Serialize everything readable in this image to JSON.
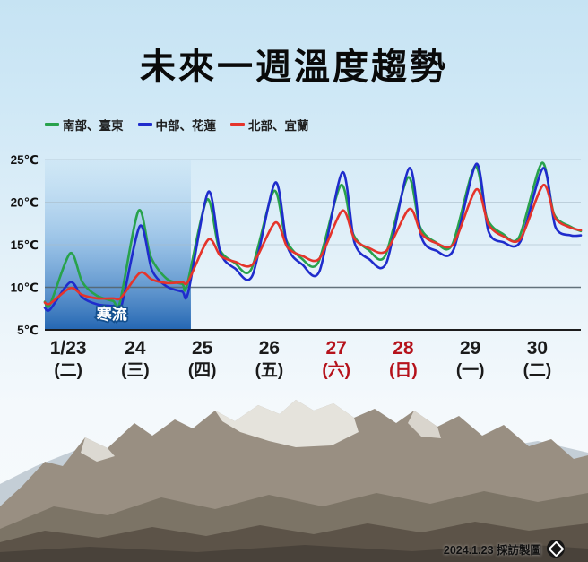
{
  "credit": {
    "text": "2024.1.23 採訪製圖"
  },
  "chart_data": {
    "type": "line",
    "title": "未來一週溫度趨勢",
    "xlabel": "",
    "ylabel": "",
    "ylim": [
      5,
      25
    ],
    "xlim": [
      0,
      8
    ],
    "grid": "horizontal",
    "legend_position": "top-left",
    "yticks": [
      {
        "v": 25,
        "label": "25℃"
      },
      {
        "v": 20,
        "label": "20℃"
      },
      {
        "v": 15,
        "label": "15℃"
      },
      {
        "v": 10,
        "label": "10℃"
      },
      {
        "v": 5,
        "label": "5℃"
      }
    ],
    "days": [
      {
        "date": "1/23",
        "dow": "(二)",
        "color": "#1a1a1a"
      },
      {
        "date": "24",
        "dow": "(三)",
        "color": "#1a1a1a"
      },
      {
        "date": "25",
        "dow": "(四)",
        "color": "#1a1a1a"
      },
      {
        "date": "26",
        "dow": "(五)",
        "color": "#1a1a1a"
      },
      {
        "date": "27",
        "dow": "(六)",
        "color": "#b5121b"
      },
      {
        "date": "28",
        "dow": "(日)",
        "color": "#b5121b"
      },
      {
        "date": "29",
        "dow": "(一)",
        "color": "#1a1a1a"
      },
      {
        "date": "30",
        "dow": "(二)",
        "color": "#1a1a1a"
      }
    ],
    "cold_wave": {
      "label": "寒流",
      "x_start": 0,
      "x_end": 2.18,
      "color": "#1a5fae"
    },
    "series": [
      {
        "name": "南部、臺東",
        "color": "#28a24c",
        "points": [
          [
            0,
            8.3
          ],
          [
            0.08,
            8.0
          ],
          [
            0.38,
            14.0
          ],
          [
            0.56,
            10.6
          ],
          [
            0.78,
            9.0
          ],
          [
            1.02,
            8.4
          ],
          [
            1.12,
            8.2
          ],
          [
            1.4,
            19.0
          ],
          [
            1.58,
            13.6
          ],
          [
            1.82,
            11.0
          ],
          [
            2.05,
            10.4
          ],
          [
            2.12,
            10.2
          ],
          [
            2.42,
            20.3
          ],
          [
            2.6,
            14.6
          ],
          [
            2.83,
            12.9
          ],
          [
            3.08,
            12.1
          ],
          [
            3.42,
            21.3
          ],
          [
            3.6,
            15.6
          ],
          [
            3.83,
            13.4
          ],
          [
            4.08,
            12.9
          ],
          [
            4.42,
            22.0
          ],
          [
            4.6,
            16.3
          ],
          [
            4.83,
            14.4
          ],
          [
            5.08,
            13.7
          ],
          [
            5.42,
            22.9
          ],
          [
            5.6,
            17.1
          ],
          [
            5.83,
            15.3
          ],
          [
            6.08,
            15.0
          ],
          [
            6.42,
            24.2
          ],
          [
            6.6,
            18.1
          ],
          [
            6.83,
            16.3
          ],
          [
            7.08,
            15.9
          ],
          [
            7.42,
            24.6
          ],
          [
            7.6,
            18.6
          ],
          [
            7.85,
            17.1
          ],
          [
            8,
            16.6
          ]
        ]
      },
      {
        "name": "中部、花蓮",
        "color": "#1f2ccc",
        "points": [
          [
            0,
            7.6
          ],
          [
            0.08,
            7.4
          ],
          [
            0.38,
            10.6
          ],
          [
            0.56,
            8.8
          ],
          [
            0.78,
            8.0
          ],
          [
            1.02,
            7.8
          ],
          [
            1.14,
            7.7
          ],
          [
            1.42,
            17.2
          ],
          [
            1.6,
            12.0
          ],
          [
            1.82,
            10.1
          ],
          [
            2.05,
            9.5
          ],
          [
            2.14,
            9.4
          ],
          [
            2.44,
            21.2
          ],
          [
            2.62,
            14.1
          ],
          [
            2.84,
            12.2
          ],
          [
            3.1,
            11.4
          ],
          [
            3.44,
            22.3
          ],
          [
            3.62,
            14.8
          ],
          [
            3.84,
            12.7
          ],
          [
            4.1,
            11.9
          ],
          [
            4.44,
            23.5
          ],
          [
            4.62,
            15.3
          ],
          [
            4.84,
            13.3
          ],
          [
            5.1,
            12.9
          ],
          [
            5.44,
            24.0
          ],
          [
            5.62,
            15.9
          ],
          [
            5.84,
            14.3
          ],
          [
            6.1,
            14.4
          ],
          [
            6.44,
            24.5
          ],
          [
            6.62,
            16.6
          ],
          [
            6.84,
            15.3
          ],
          [
            7.1,
            15.4
          ],
          [
            7.44,
            24.0
          ],
          [
            7.62,
            17.1
          ],
          [
            7.85,
            16.1
          ],
          [
            8,
            16.1
          ]
        ]
      },
      {
        "name": "北部、宜蘭",
        "color": "#e5342b",
        "points": [
          [
            0,
            8.2
          ],
          [
            0.08,
            8.1
          ],
          [
            0.38,
            9.9
          ],
          [
            0.56,
            9.1
          ],
          [
            0.78,
            8.7
          ],
          [
            1.02,
            8.7
          ],
          [
            1.14,
            8.8
          ],
          [
            1.42,
            11.7
          ],
          [
            1.6,
            10.9
          ],
          [
            1.82,
            10.5
          ],
          [
            2.05,
            10.6
          ],
          [
            2.14,
            10.7
          ],
          [
            2.44,
            15.6
          ],
          [
            2.62,
            13.7
          ],
          [
            2.84,
            13.0
          ],
          [
            3.1,
            12.7
          ],
          [
            3.44,
            17.6
          ],
          [
            3.62,
            14.7
          ],
          [
            3.84,
            13.7
          ],
          [
            4.1,
            13.4
          ],
          [
            4.44,
            19.0
          ],
          [
            4.62,
            15.7
          ],
          [
            4.84,
            14.6
          ],
          [
            5.1,
            14.3
          ],
          [
            5.44,
            19.2
          ],
          [
            5.62,
            16.3
          ],
          [
            5.84,
            15.2
          ],
          [
            6.1,
            15.1
          ],
          [
            6.44,
            21.5
          ],
          [
            6.62,
            17.4
          ],
          [
            6.84,
            16.0
          ],
          [
            7.1,
            15.7
          ],
          [
            7.44,
            22.0
          ],
          [
            7.62,
            18.1
          ],
          [
            7.85,
            17.0
          ],
          [
            8,
            16.7
          ]
        ]
      }
    ]
  }
}
